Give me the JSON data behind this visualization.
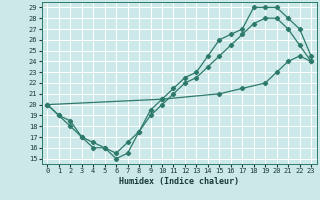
{
  "xlabel": "Humidex (Indice chaleur)",
  "bg_color": "#cce8e8",
  "grid_color": "#ffffff",
  "line_color": "#2d7a6a",
  "xlim": [
    -0.5,
    23.5
  ],
  "ylim": [
    14.5,
    29.5
  ],
  "xticks": [
    0,
    1,
    2,
    3,
    4,
    5,
    6,
    7,
    8,
    9,
    10,
    11,
    12,
    13,
    14,
    15,
    16,
    17,
    18,
    19,
    20,
    21,
    22,
    23
  ],
  "yticks": [
    15,
    16,
    17,
    18,
    19,
    20,
    21,
    22,
    23,
    24,
    25,
    26,
    27,
    28,
    29
  ],
  "line1_x": [
    0,
    1,
    2,
    3,
    4,
    5,
    6,
    7,
    8,
    9,
    10,
    11,
    12,
    13,
    14,
    15,
    16,
    17,
    18,
    19,
    20,
    21,
    22,
    23
  ],
  "line1_y": [
    20,
    19,
    18.5,
    17,
    16.5,
    16,
    15,
    15.5,
    17.5,
    19.5,
    20.5,
    21.5,
    22.5,
    23,
    24.5,
    26,
    26.5,
    27,
    29,
    29,
    29,
    28,
    27,
    24.5
  ],
  "line2_x": [
    0,
    1,
    2,
    3,
    4,
    5,
    6,
    7,
    8,
    9,
    10,
    11,
    12,
    13,
    14,
    15,
    16,
    17,
    18,
    19,
    20,
    21,
    22,
    23
  ],
  "line2_y": [
    20,
    19,
    18,
    17,
    16,
    16,
    15.5,
    16.5,
    17.5,
    19,
    20,
    21,
    22,
    22.5,
    23.5,
    24.5,
    25.5,
    26.5,
    27.5,
    28,
    28,
    27,
    25.5,
    24
  ],
  "line3_x": [
    0,
    10,
    15,
    17,
    19,
    20,
    21,
    22,
    23
  ],
  "line3_y": [
    20,
    20.5,
    21,
    21.5,
    22,
    23,
    24,
    24.5,
    24
  ]
}
